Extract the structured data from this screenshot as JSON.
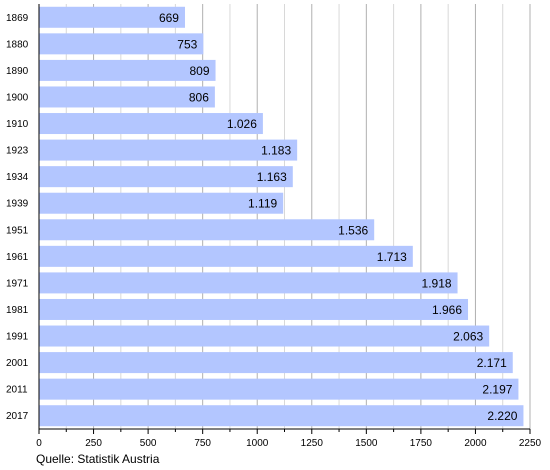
{
  "chart_data": {
    "type": "bar",
    "orientation": "horizontal",
    "categories": [
      "1869",
      "1880",
      "1890",
      "1900",
      "1910",
      "1923",
      "1934",
      "1939",
      "1951",
      "1961",
      "1971",
      "1981",
      "1991",
      "2001",
      "2011",
      "2017"
    ],
    "values": [
      669,
      753,
      809,
      806,
      1026,
      1183,
      1163,
      1119,
      1536,
      1713,
      1918,
      1966,
      2063,
      2171,
      2197,
      2220
    ],
    "value_labels": [
      "669",
      "753",
      "809",
      "806",
      "1.026",
      "1.183",
      "1.163",
      "1.119",
      "1.536",
      "1.713",
      "1.918",
      "1.966",
      "2.063",
      "2.171",
      "2.197",
      "2.220"
    ],
    "x_ticks": [
      "0",
      "250",
      "500",
      "750",
      "1000",
      "1250",
      "1500",
      "1750",
      "2000",
      "2250"
    ],
    "xlim": [
      0,
      2250
    ],
    "grid": "vertical",
    "bar_color": "#b3c6ff",
    "title": "",
    "xlabel": "",
    "ylabel": ""
  },
  "source": "Quelle: Statistik Austria"
}
